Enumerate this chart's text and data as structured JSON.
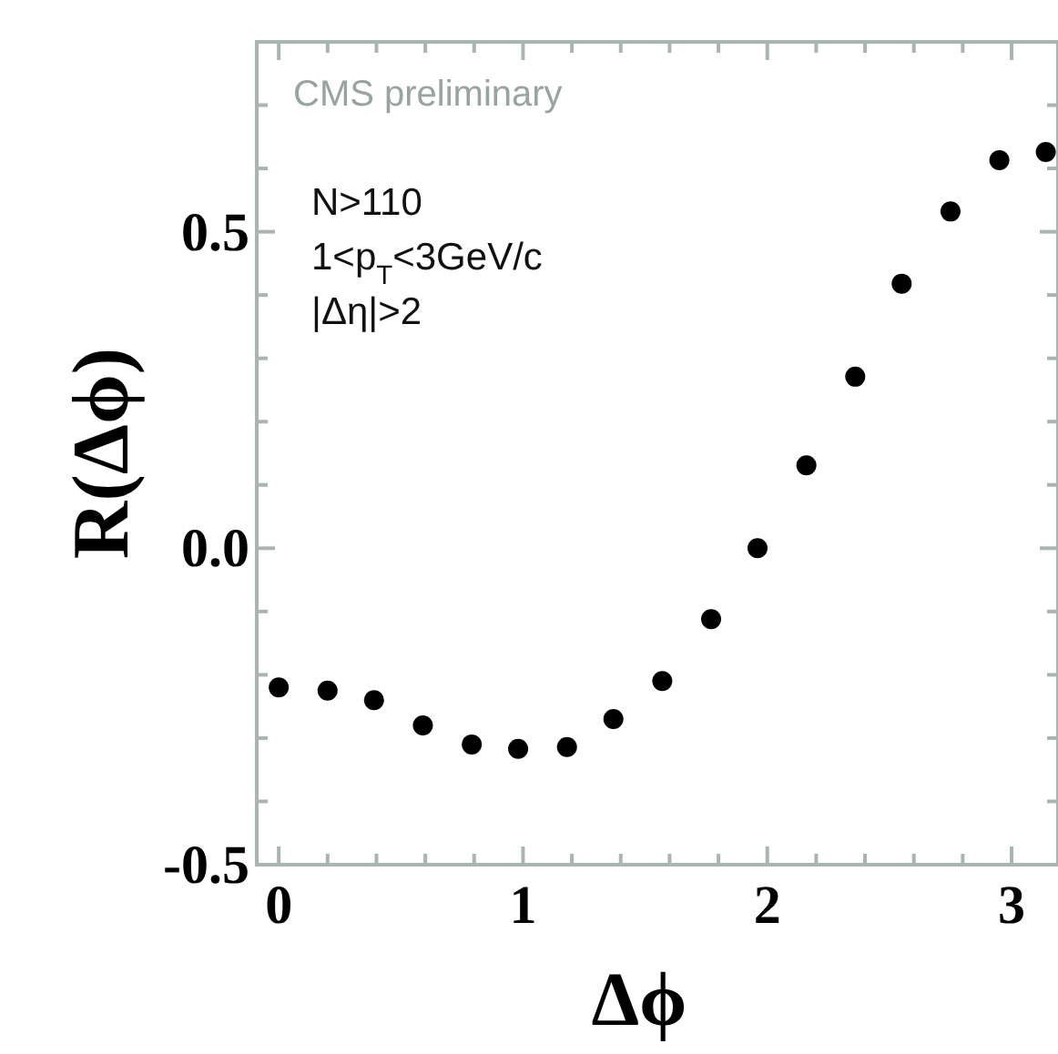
{
  "chart_data": {
    "type": "scatter",
    "xlabel": "Δϕ",
    "ylabel": "R(Δϕ)",
    "annotations": [
      "CMS preliminary",
      "N>110",
      "1<p$_{T}$<3GeV/c",
      "|Δη|>2"
    ],
    "x": [
      0,
      0.2,
      0.39,
      0.59,
      0.79,
      0.98,
      1.18,
      1.37,
      1.57,
      1.77,
      1.96,
      2.16,
      2.36,
      2.55,
      2.75,
      2.95,
      3.14
    ],
    "series": [
      {
        "color": "#000000",
        "values": [
          -0.22,
          -0.225,
          -0.24,
          -0.28,
          -0.31,
          -0.317,
          -0.314,
          -0.27,
          -0.21,
          -0.112,
          0.0,
          0.131,
          0.271,
          0.418,
          0.532,
          0.613,
          0.626
        ]
      }
    ],
    "marker": "circle",
    "grid": false,
    "xlim": [
      -0.09,
      3.19
    ],
    "ylim": [
      -0.5,
      0.8
    ],
    "xticks": [
      0,
      {
        "value": 0.2,
        "label": null
      },
      {
        "value": 0.4,
        "label": null
      },
      {
        "value": 0.6,
        "label": null
      },
      {
        "value": 0.8,
        "label": null
      },
      1,
      {
        "value": 1.2,
        "label": null
      },
      {
        "value": 1.4,
        "label": null
      },
      {
        "value": 1.6,
        "label": null
      },
      {
        "value": 1.8,
        "label": null
      },
      2,
      {
        "value": 2.2,
        "label": null
      },
      {
        "value": 2.4,
        "label": null
      },
      {
        "value": 2.6,
        "label": null
      },
      {
        "value": 2.8,
        "label": null
      },
      3
    ],
    "yticks": [
      {
        "value": -0.5,
        "label": "-0.5"
      },
      {
        "value": -0.4,
        "label": null
      },
      {
        "value": -0.3,
        "label": null
      },
      {
        "value": -0.2,
        "label": null
      },
      {
        "value": -0.1,
        "label": null
      },
      {
        "value": 0,
        "label": "0.0"
      },
      {
        "value": 0.1,
        "label": null
      },
      {
        "value": 0.2,
        "label": null
      },
      {
        "value": 0.3,
        "label": null
      },
      {
        "value": 0.4,
        "label": null
      },
      {
        "value": 0.5,
        "label": "0.5"
      },
      {
        "value": 0.6,
        "label": null
      },
      {
        "value": 0.7,
        "label": null
      }
    ]
  }
}
